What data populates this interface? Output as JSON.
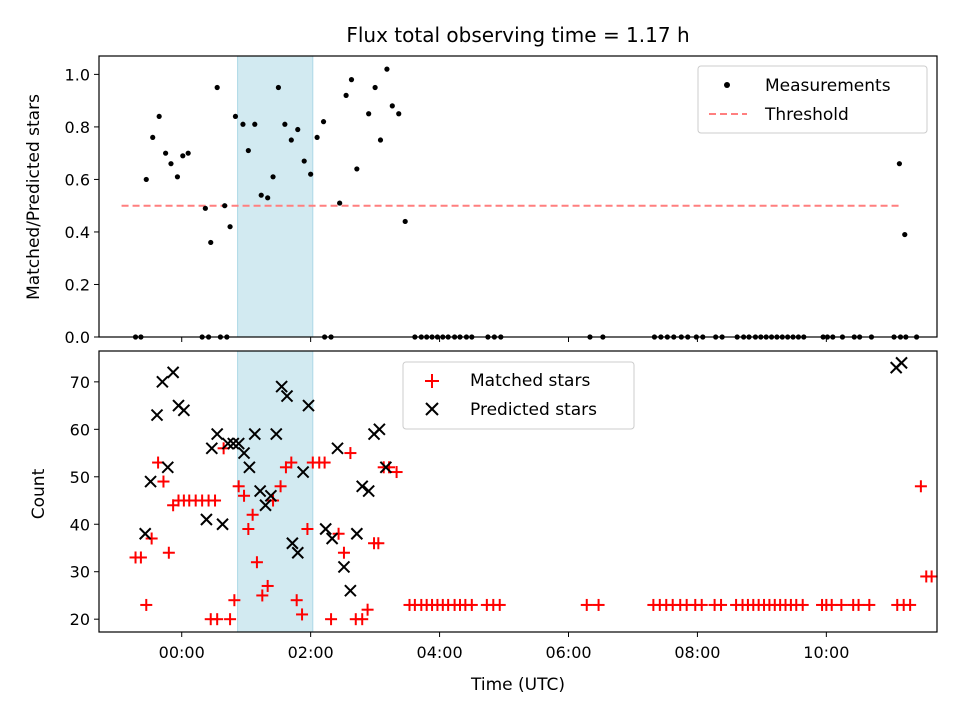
{
  "chart_data": [
    {
      "type": "scatter",
      "title": "Flux total observing time = 1.17 h",
      "xlabel": "",
      "ylabel": "Matched/Predicted stars",
      "xlim": [
        "-01:17",
        "11:43"
      ],
      "ylim": [
        0,
        1.07
      ],
      "yticks": [
        "0.0",
        "0.2",
        "0.4",
        "0.6",
        "0.8",
        "1.0"
      ],
      "highlight_span": {
        "start": "00:52",
        "end": "02:02",
        "color": "#add8e6"
      },
      "threshold": {
        "name": "Threshold",
        "y": 0.5,
        "x_start": "-00:56",
        "x_end": "11:08",
        "color": "#ff7f7f",
        "style": "dashed"
      },
      "series": [
        {
          "name": "Measurements",
          "color": "#000000",
          "marker": "dot",
          "points": [
            [
              "-00:33",
              0.6
            ],
            [
              "-00:27",
              0.76
            ],
            [
              "-00:21",
              0.84
            ],
            [
              "-00:15",
              0.7
            ],
            [
              "-00:10",
              0.66
            ],
            [
              "-00:04",
              0.61
            ],
            [
              "00:01",
              0.69
            ],
            [
              "00:06",
              0.7
            ],
            [
              "00:22",
              0.49
            ],
            [
              "00:27",
              0.36
            ],
            [
              "00:33",
              0.95
            ],
            [
              "00:40",
              0.5
            ],
            [
              "00:45",
              0.42
            ],
            [
              "00:50",
              0.84
            ],
            [
              "00:57",
              0.81
            ],
            [
              "01:02",
              0.71
            ],
            [
              "01:08",
              0.81
            ],
            [
              "01:14",
              0.54
            ],
            [
              "01:20",
              0.53
            ],
            [
              "01:25",
              0.61
            ],
            [
              "01:30",
              0.95
            ],
            [
              "01:36",
              0.81
            ],
            [
              "01:42",
              0.75
            ],
            [
              "01:48",
              0.79
            ],
            [
              "01:54",
              0.67
            ],
            [
              "02:00",
              0.62
            ],
            [
              "02:06",
              0.76
            ],
            [
              "02:12",
              0.82
            ],
            [
              "02:27",
              0.51
            ],
            [
              "02:33",
              0.92
            ],
            [
              "02:38",
              0.98
            ],
            [
              "02:43",
              0.64
            ],
            [
              "02:54",
              0.85
            ],
            [
              "03:00",
              0.95
            ],
            [
              "03:05",
              0.75
            ],
            [
              "03:11",
              1.02
            ],
            [
              "03:16",
              0.88
            ],
            [
              "03:22",
              0.85
            ],
            [
              "03:28",
              0.44
            ],
            [
              "11:08",
              0.66
            ],
            [
              "11:13",
              0.39
            ],
            [
              "-00:43",
              0
            ],
            [
              "-00:38",
              0
            ],
            [
              "00:19",
              0
            ],
            [
              "00:25",
              0
            ],
            [
              "00:36",
              0
            ],
            [
              "00:42",
              0
            ],
            [
              "02:13",
              0
            ],
            [
              "02:19",
              0
            ],
            [
              "03:37",
              0
            ],
            [
              "03:43",
              0
            ],
            [
              "03:48",
              0
            ],
            [
              "03:53",
              0
            ],
            [
              "03:58",
              0
            ],
            [
              "04:03",
              0
            ],
            [
              "04:08",
              0
            ],
            [
              "04:14",
              0
            ],
            [
              "04:19",
              0
            ],
            [
              "04:25",
              0
            ],
            [
              "04:30",
              0
            ],
            [
              "04:45",
              0
            ],
            [
              "04:51",
              0
            ],
            [
              "04:57",
              0
            ],
            [
              "06:20",
              0
            ],
            [
              "06:32",
              0
            ],
            [
              "07:20",
              0
            ],
            [
              "07:26",
              0
            ],
            [
              "07:32",
              0
            ],
            [
              "07:38",
              0
            ],
            [
              "07:45",
              0
            ],
            [
              "07:51",
              0
            ],
            [
              "07:59",
              0
            ],
            [
              "08:05",
              0
            ],
            [
              "08:17",
              0
            ],
            [
              "08:23",
              0
            ],
            [
              "08:37",
              0
            ],
            [
              "08:43",
              0
            ],
            [
              "08:48",
              0
            ],
            [
              "08:54",
              0
            ],
            [
              "08:59",
              0
            ],
            [
              "09:04",
              0
            ],
            [
              "09:09",
              0
            ],
            [
              "09:14",
              0
            ],
            [
              "09:19",
              0
            ],
            [
              "09:24",
              0
            ],
            [
              "09:29",
              0
            ],
            [
              "09:34",
              0
            ],
            [
              "09:39",
              0
            ],
            [
              "09:57",
              0
            ],
            [
              "10:01",
              0
            ],
            [
              "10:06",
              0
            ],
            [
              "10:15",
              0
            ],
            [
              "10:26",
              0
            ],
            [
              "10:31",
              0
            ],
            [
              "10:42",
              0
            ],
            [
              "11:03",
              0
            ],
            [
              "11:09",
              0
            ],
            [
              "11:14",
              0
            ],
            [
              "11:24",
              0
            ]
          ]
        }
      ],
      "legend": {
        "position": "top-right"
      }
    },
    {
      "type": "scatter",
      "title": "",
      "xlabel": "Time (UTC)",
      "ylabel": "Count",
      "xlim": [
        "-01:17",
        "11:43"
      ],
      "ylim": [
        17.3,
        76.5
      ],
      "xticks": [
        "00:00",
        "02:00",
        "04:00",
        "06:00",
        "08:00",
        "10:00"
      ],
      "yticks": [
        "20",
        "30",
        "40",
        "50",
        "60",
        "70"
      ],
      "highlight_span": {
        "start": "00:52",
        "end": "02:02",
        "color": "#add8e6"
      },
      "series": [
        {
          "name": "Matched stars",
          "color": "#ff0000",
          "marker": "plus",
          "points": [
            [
              "-00:43",
              33
            ],
            [
              "-00:38",
              33
            ],
            [
              "-00:33",
              23
            ],
            [
              "-00:28",
              37
            ],
            [
              "-00:22",
              53
            ],
            [
              "-00:17",
              49
            ],
            [
              "-00:12",
              34
            ],
            [
              "-00:08",
              44
            ],
            [
              "-00:03",
              45
            ],
            [
              "00:02",
              45
            ],
            [
              "00:07",
              45
            ],
            [
              "00:13",
              45
            ],
            [
              "00:19",
              45
            ],
            [
              "00:25",
              45
            ],
            [
              "00:31",
              45
            ],
            [
              "00:27",
              20
            ],
            [
              "00:33",
              20
            ],
            [
              "00:39",
              56
            ],
            [
              "00:45",
              20
            ],
            [
              "00:49",
              24
            ],
            [
              "00:53",
              48
            ],
            [
              "00:58",
              46
            ],
            [
              "01:02",
              39
            ],
            [
              "01:06",
              42
            ],
            [
              "01:10",
              32
            ],
            [
              "01:15",
              25
            ],
            [
              "01:20",
              27
            ],
            [
              "01:25",
              45
            ],
            [
              "01:32",
              48
            ],
            [
              "01:37",
              52
            ],
            [
              "01:42",
              53
            ],
            [
              "01:47",
              24
            ],
            [
              "01:52",
              21
            ],
            [
              "01:57",
              39
            ],
            [
              "02:02",
              53
            ],
            [
              "02:08",
              53
            ],
            [
              "02:13",
              53
            ],
            [
              "02:19",
              20
            ],
            [
              "02:26",
              38
            ],
            [
              "02:31",
              34
            ],
            [
              "02:37",
              55
            ],
            [
              "02:42",
              20
            ],
            [
              "02:48",
              20
            ],
            [
              "02:53",
              22
            ],
            [
              "02:59",
              36
            ],
            [
              "03:03",
              36
            ],
            [
              "03:08",
              52
            ],
            [
              "03:13",
              52
            ],
            [
              "03:20",
              51
            ],
            [
              "03:32",
              23
            ],
            [
              "03:37",
              23
            ],
            [
              "03:43",
              23
            ],
            [
              "03:48",
              23
            ],
            [
              "03:53",
              23
            ],
            [
              "03:58",
              23
            ],
            [
              "04:03",
              23
            ],
            [
              "04:08",
              23
            ],
            [
              "04:14",
              23
            ],
            [
              "04:19",
              23
            ],
            [
              "04:24",
              23
            ],
            [
              "04:30",
              23
            ],
            [
              "04:44",
              23
            ],
            [
              "04:50",
              23
            ],
            [
              "04:56",
              23
            ],
            [
              "06:17",
              23
            ],
            [
              "06:28",
              23
            ],
            [
              "07:19",
              23
            ],
            [
              "07:25",
              23
            ],
            [
              "07:31",
              23
            ],
            [
              "07:37",
              23
            ],
            [
              "07:44",
              23
            ],
            [
              "07:50",
              23
            ],
            [
              "07:58",
              23
            ],
            [
              "08:04",
              23
            ],
            [
              "08:16",
              23
            ],
            [
              "08:22",
              23
            ],
            [
              "08:36",
              23
            ],
            [
              "08:42",
              23
            ],
            [
              "08:47",
              23
            ],
            [
              "08:52",
              23
            ],
            [
              "08:57",
              23
            ],
            [
              "09:02",
              23
            ],
            [
              "09:07",
              23
            ],
            [
              "09:12",
              23
            ],
            [
              "09:17",
              23
            ],
            [
              "09:22",
              23
            ],
            [
              "09:27",
              23
            ],
            [
              "09:32",
              23
            ],
            [
              "09:38",
              23
            ],
            [
              "09:56",
              23
            ],
            [
              "10:00",
              23
            ],
            [
              "10:05",
              23
            ],
            [
              "10:14",
              23
            ],
            [
              "10:25",
              23
            ],
            [
              "10:30",
              23
            ],
            [
              "10:40",
              23
            ],
            [
              "11:06",
              23
            ],
            [
              "11:12",
              23
            ],
            [
              "11:18",
              23
            ],
            [
              "11:28",
              48
            ],
            [
              "11:33",
              29
            ],
            [
              "11:38",
              29
            ]
          ]
        },
        {
          "name": "Predicted stars",
          "color": "#000000",
          "marker": "x",
          "points": [
            [
              "-00:34",
              38
            ],
            [
              "-00:29",
              49
            ],
            [
              "-00:23",
              63
            ],
            [
              "-00:18",
              70
            ],
            [
              "-00:13",
              52
            ],
            [
              "-00:08",
              72
            ],
            [
              "-00:03",
              65
            ],
            [
              "00:02",
              64
            ],
            [
              "00:23",
              41
            ],
            [
              "00:28",
              56
            ],
            [
              "00:33",
              59
            ],
            [
              "00:38",
              40
            ],
            [
              "00:43",
              57
            ],
            [
              "00:48",
              57
            ],
            [
              "00:53",
              57
            ],
            [
              "00:58",
              55
            ],
            [
              "01:03",
              52
            ],
            [
              "01:08",
              59
            ],
            [
              "01:13",
              47
            ],
            [
              "01:18",
              44
            ],
            [
              "01:23",
              46
            ],
            [
              "01:28",
              59
            ],
            [
              "01:33",
              69
            ],
            [
              "01:38",
              67
            ],
            [
              "01:43",
              36
            ],
            [
              "01:48",
              34
            ],
            [
              "01:53",
              51
            ],
            [
              "01:58",
              65
            ],
            [
              "02:14",
              39
            ],
            [
              "02:20",
              37
            ],
            [
              "02:25",
              56
            ],
            [
              "02:31",
              31
            ],
            [
              "02:37",
              26
            ],
            [
              "02:43",
              38
            ],
            [
              "02:48",
              48
            ],
            [
              "02:54",
              47
            ],
            [
              "02:59",
              59
            ],
            [
              "03:04",
              60
            ],
            [
              "03:10",
              52
            ],
            [
              "11:05",
              73
            ],
            [
              "11:10",
              74
            ]
          ]
        }
      ],
      "legend": {
        "position": "top-center"
      }
    }
  ]
}
